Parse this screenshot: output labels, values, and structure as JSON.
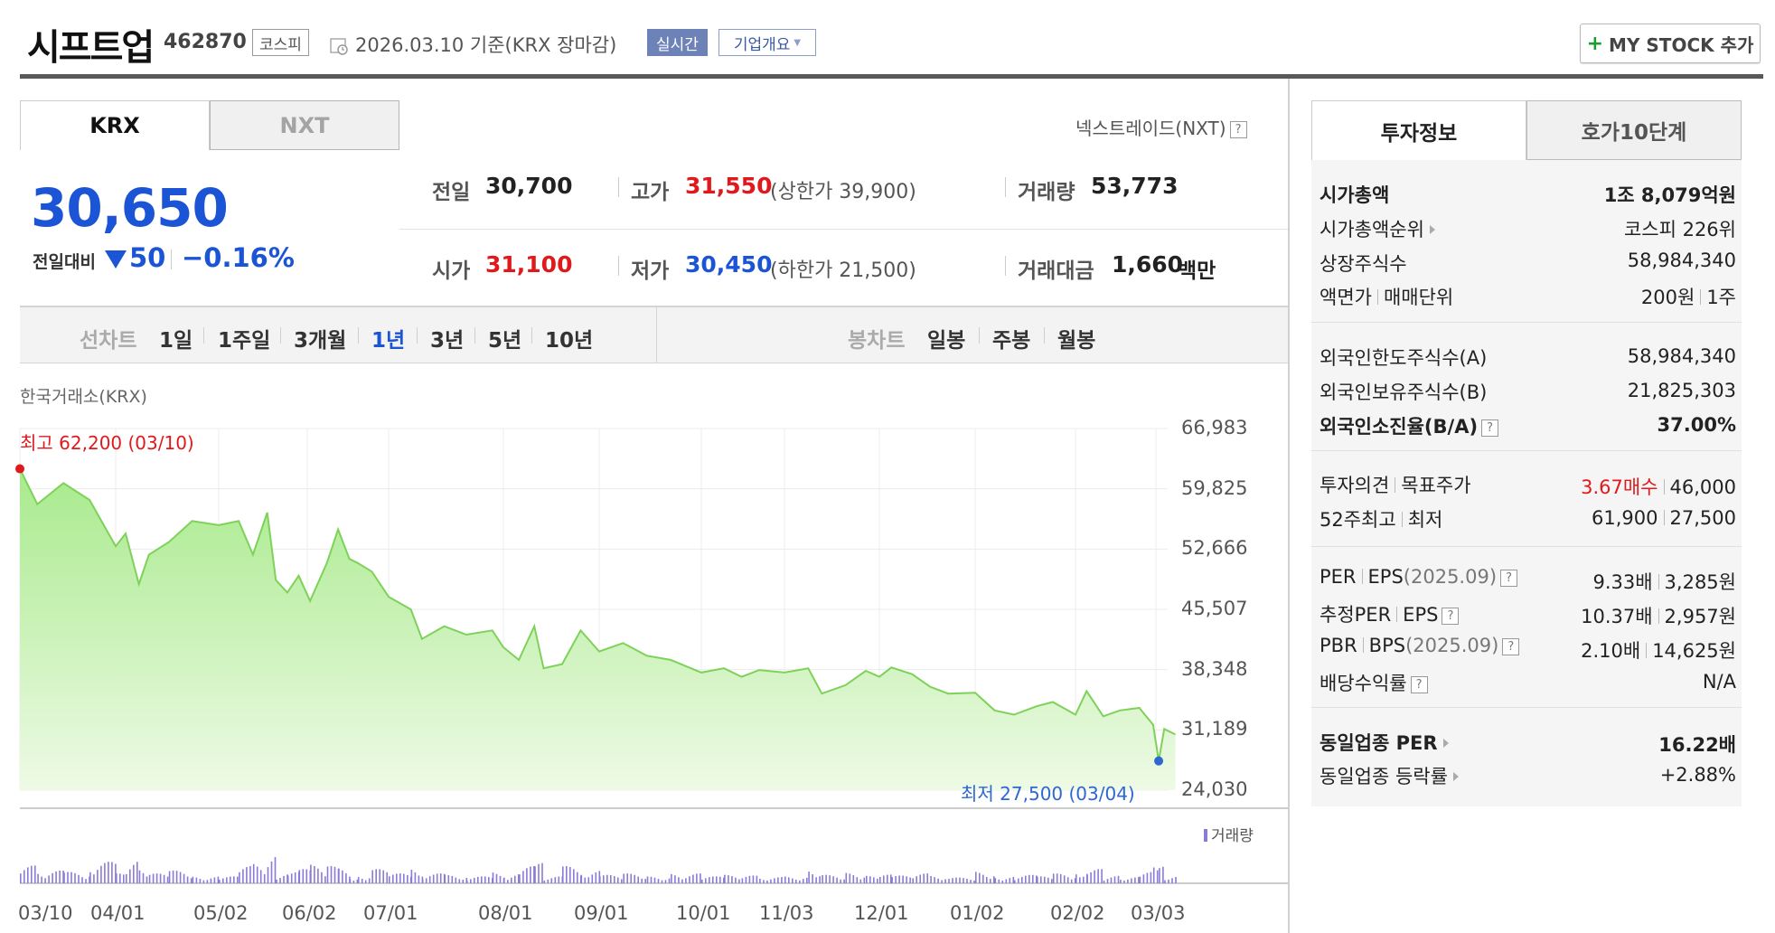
{
  "header": {
    "title": "시프트업",
    "code": "462870",
    "market": "코스피",
    "date_text": "2026.03.10  기준(KRX 장마감)",
    "realtime_label": "실시간",
    "company_label": "기업개요",
    "mystock_label": "MY STOCK 추가"
  },
  "exchange_tabs": [
    "KRX",
    "NXT"
  ],
  "nxt_link": "넥스트레이드(NXT)",
  "price": {
    "current": "30,650",
    "change_label": "전일대비",
    "change": "50",
    "change_pct": "−0.16%"
  },
  "stats": {
    "prev_close_label": "전일",
    "prev_close": "30,700",
    "high_label": "고가",
    "high": "31,550",
    "upper_limit": "(상한가 39,900)",
    "volume_label": "거래량",
    "volume": "53,773",
    "open_label": "시가",
    "open": "31,100",
    "low_label": "저가",
    "low": "30,450",
    "lower_limit": "(하한가 21,500)",
    "amount_label": "거래대금",
    "amount": "1,660",
    "amount_unit": "백만"
  },
  "periods": {
    "line_label": "선차트",
    "line_items": [
      "1일",
      "1주일",
      "3개월",
      "1년",
      "3년",
      "5년",
      "10년"
    ],
    "active": "1년",
    "candle_label": "봉차트",
    "candle_items": [
      "일봉",
      "주봉",
      "월봉"
    ]
  },
  "chart_data": {
    "type": "area",
    "source_label": "한국거래소(KRX)",
    "y_ticks": [
      "66,983",
      "59,825",
      "52,666",
      "45,507",
      "38,348",
      "31,189",
      "24,030"
    ],
    "ylim": [
      24030,
      66983
    ],
    "x_ticks": [
      "03/10",
      "04/01",
      "05/02",
      "06/02",
      "07/01",
      "08/01",
      "09/01",
      "10/01",
      "11/03",
      "12/01",
      "01/02",
      "02/02",
      "03/03"
    ],
    "high_label": "최고 62,200 (03/10)",
    "low_label": "최저 27,500 (03/04)",
    "volume_label": "거래량",
    "price_series": [
      [
        "03/10",
        62200
      ],
      [
        "03/14",
        58000
      ],
      [
        "03/20",
        60500
      ],
      [
        "03/26",
        58500
      ],
      [
        "04/01",
        53000
      ],
      [
        "04/04",
        54500
      ],
      [
        "04/08",
        48500
      ],
      [
        "04/11",
        52000
      ],
      [
        "04/17",
        53500
      ],
      [
        "04/24",
        56000
      ],
      [
        "05/02",
        55500
      ],
      [
        "05/09",
        56000
      ],
      [
        "05/14",
        52000
      ],
      [
        "05/19",
        57000
      ],
      [
        "05/22",
        49000
      ],
      [
        "05/26",
        47500
      ],
      [
        "05/30",
        49500
      ],
      [
        "06/03",
        46500
      ],
      [
        "06/09",
        51000
      ],
      [
        "06/13",
        55000
      ],
      [
        "06/17",
        51500
      ],
      [
        "06/20",
        51000
      ],
      [
        "06/25",
        50000
      ],
      [
        "07/01",
        47000
      ],
      [
        "07/07",
        45500
      ],
      [
        "07/10",
        42000
      ],
      [
        "07/16",
        43500
      ],
      [
        "07/22",
        42500
      ],
      [
        "07/29",
        43000
      ],
      [
        "08/01",
        41000
      ],
      [
        "08/06",
        39500
      ],
      [
        "08/11",
        43500
      ],
      [
        "08/14",
        38500
      ],
      [
        "08/20",
        39000
      ],
      [
        "08/26",
        43000
      ],
      [
        "09/01",
        40500
      ],
      [
        "09/08",
        41500
      ],
      [
        "09/15",
        40000
      ],
      [
        "09/22",
        39500
      ],
      [
        "10/01",
        38000
      ],
      [
        "10/10",
        38500
      ],
      [
        "10/17",
        37500
      ],
      [
        "10/24",
        38300
      ],
      [
        "11/03",
        38000
      ],
      [
        "11/10",
        38500
      ],
      [
        "11/14",
        35500
      ],
      [
        "11/21",
        36500
      ],
      [
        "11/27",
        38200
      ],
      [
        "12/01",
        37500
      ],
      [
        "12/05",
        38600
      ],
      [
        "12/12",
        37800
      ],
      [
        "12/18",
        36300
      ],
      [
        "12/24",
        35500
      ],
      [
        "01/02",
        35600
      ],
      [
        "01/08",
        33500
      ],
      [
        "01/14",
        33000
      ],
      [
        "01/21",
        34000
      ],
      [
        "01/26",
        34500
      ],
      [
        "02/02",
        33000
      ],
      [
        "02/06",
        35800
      ],
      [
        "02/12",
        32800
      ],
      [
        "02/18",
        33500
      ],
      [
        "02/25",
        33800
      ],
      [
        "03/02",
        31800
      ],
      [
        "03/04",
        27500
      ],
      [
        "03/06",
        31300
      ],
      [
        "03/10",
        30650
      ]
    ],
    "series": [
      {
        "values_field": "price_series"
      }
    ]
  },
  "info": {
    "tabs": [
      "투자정보",
      "호가10단계"
    ],
    "rows_1": [
      {
        "label": "시가총액",
        "value": "1조 8,079억원"
      },
      {
        "label": "시가총액순위",
        "value": "코스피 226위"
      },
      {
        "label": "상장주식수",
        "value": "58,984,340"
      },
      {
        "label_a": "액면가",
        "label_b": "매매단위",
        "value_a": "200원",
        "value_b": "1주"
      }
    ],
    "rows_2": [
      {
        "label": "외국인한도주식수(A)",
        "value": "58,984,340"
      },
      {
        "label": "외국인보유주식수(B)",
        "value": "21,825,303"
      },
      {
        "label": "외국인소진율(B/A)",
        "value": "37.00%"
      }
    ],
    "rows_3": [
      {
        "label_a": "투자의견",
        "label_b": "목표주가",
        "value_a": "3.67매수",
        "value_b": "46,000"
      },
      {
        "label_a": "52주최고",
        "label_b": "최저",
        "value_a": "61,900",
        "value_b": "27,500"
      }
    ],
    "rows_4": [
      {
        "label_a": "PER",
        "label_b": "EPS",
        "label_c": "(2025.09)",
        "value_a": "9.33배",
        "value_b": "3,285원"
      },
      {
        "label_a": "추정PER",
        "label_b": "EPS",
        "label_c": "",
        "value_a": "10.37배",
        "value_b": "2,957원"
      },
      {
        "label_a": "PBR",
        "label_b": "BPS",
        "label_c": "(2025.09)",
        "value_a": "2.10배",
        "value_b": "14,625원"
      },
      {
        "label": "배당수익률",
        "value": "N/A"
      }
    ],
    "rows_5": [
      {
        "label": "동일업종 PER",
        "value": "16.22배"
      },
      {
        "label": "동일업종 등락률",
        "value": "+2.88%"
      }
    ]
  },
  "colors": {
    "up": "#e0191c",
    "down": "#1b54d4",
    "area_top": "#a8ea8c",
    "area_bottom": "#eefae6",
    "line": "#7ed259",
    "volume": "#8b7ad6"
  }
}
